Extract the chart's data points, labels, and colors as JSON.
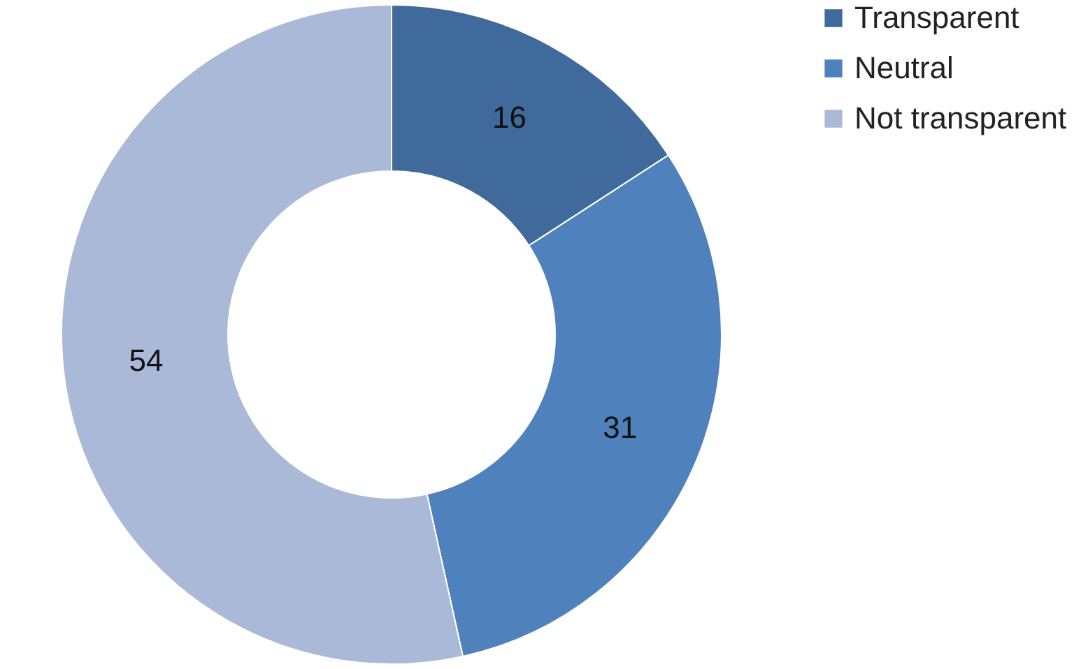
{
  "chart_data": {
    "type": "donut",
    "categories": [
      "Transparent",
      "Neutral",
      "Not transparent"
    ],
    "values": [
      16,
      31,
      54
    ],
    "colors": [
      "#40699c",
      "#4f81bd",
      "#aab9d8"
    ],
    "data_labels": true,
    "legend": "right"
  }
}
